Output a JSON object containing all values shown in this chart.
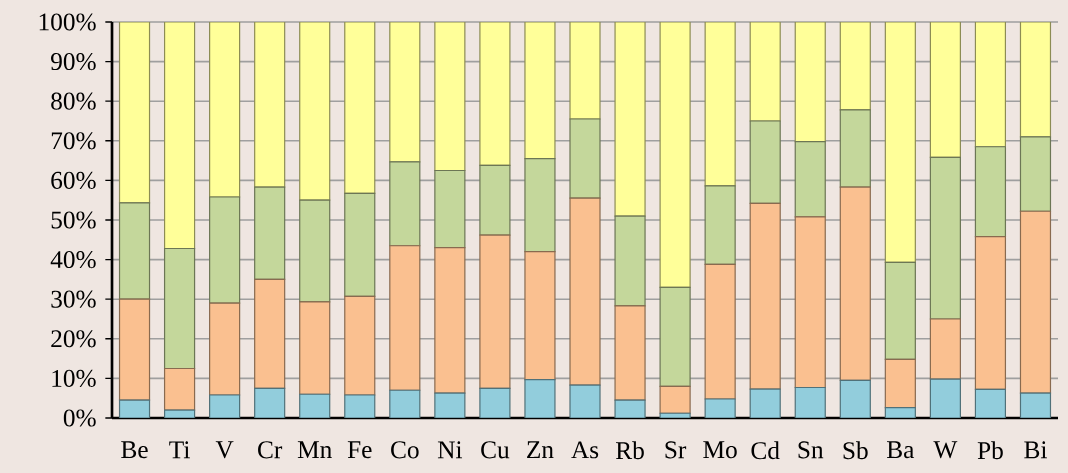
{
  "chart_data": {
    "type": "bar",
    "stacked": true,
    "categories": [
      "Be",
      "Ti",
      "V",
      "Cr",
      "Mn",
      "Fe",
      "Co",
      "Ni",
      "Cu",
      "Zn",
      "As",
      "Rb",
      "Sr",
      "Mo",
      "Cd",
      "Sn",
      "Sb",
      "Ba",
      "W",
      "Pb",
      "Bi"
    ],
    "series": [
      {
        "color": "#92cddc",
        "values": [
          4.5,
          2,
          5.8,
          7.5,
          6,
          5.8,
          7,
          6.3,
          7.5,
          9.7,
          8.3,
          4.5,
          1.2,
          4.8,
          7.3,
          7.7,
          9.5,
          2.6,
          9.8,
          7.2,
          6.3
        ]
      },
      {
        "color": "#fac090",
        "values": [
          25.5,
          10.5,
          23.2,
          27.5,
          23.3,
          24.9,
          36.5,
          36.7,
          38.7,
          32.3,
          47.2,
          23.8,
          6.8,
          34,
          46.9,
          43.1,
          48.8,
          12.2,
          15.2,
          38.6,
          45.9
        ]
      },
      {
        "color": "#c4d79b",
        "values": [
          24.3,
          30.3,
          26.8,
          23.3,
          25.7,
          26,
          21.2,
          19.5,
          17.6,
          23.5,
          20,
          22.7,
          25,
          19.8,
          20.8,
          19,
          19.5,
          24.5,
          40.8,
          22.7,
          18.8
        ]
      },
      {
        "color": "#ffff99",
        "values": [
          45.7,
          57.2,
          44.2,
          41.7,
          45,
          43.3,
          35.3,
          37.5,
          36.2,
          34.5,
          24.5,
          49,
          67,
          41.4,
          25,
          30.2,
          22.2,
          60.7,
          34.2,
          31.5,
          29
        ]
      }
    ],
    "ylim": [
      0,
      100
    ],
    "yticks": [
      {
        "value": 0,
        "label": "0%"
      },
      {
        "value": 10,
        "label": "10%"
      },
      {
        "value": 20,
        "label": "20%"
      },
      {
        "value": 30,
        "label": "30%"
      },
      {
        "value": 40,
        "label": "40%"
      },
      {
        "value": 50,
        "label": "50%"
      },
      {
        "value": 60,
        "label": "60%"
      },
      {
        "value": 70,
        "label": "70%"
      },
      {
        "value": 80,
        "label": "80%"
      },
      {
        "value": 90,
        "label": "90%"
      },
      {
        "value": 100,
        "label": "100%"
      }
    ],
    "grid": "y"
  }
}
